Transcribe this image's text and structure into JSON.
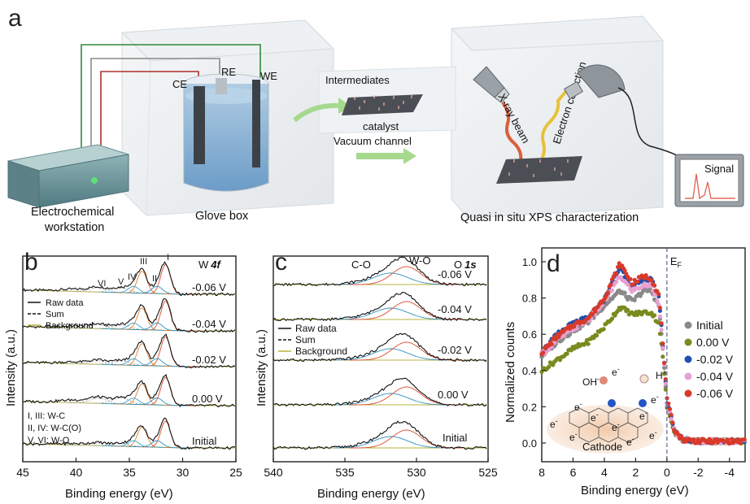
{
  "panel_a": {
    "letter": "a",
    "ce": "CE",
    "re": "RE",
    "we": "WE",
    "workstation_line1": "Electrochemical",
    "workstation_line2": "workstation",
    "glove_box": "Glove box",
    "intermediates": "Intermediates",
    "catalyst": "catalyst",
    "vacuum_channel": "Vacuum channel",
    "xray_beam": "X-ray beam",
    "electron_collection": "Electron collection",
    "signal": "Signal",
    "xps_title": "Quasi in situ XPS characterization"
  },
  "chart_data": [
    {
      "type": "line",
      "panel": "b",
      "title": "W 4f",
      "title_element": "W",
      "title_orbital": "4f",
      "xlabel": "Binding energy (eV)",
      "ylabel": "Intensity (a.u.)",
      "xlim": [
        45,
        25
      ],
      "xticks": [
        "45",
        "40",
        "35",
        "30",
        "25"
      ],
      "peak_labels": [
        "VI",
        "V",
        "IV",
        "III",
        "II",
        "I"
      ],
      "legend": [
        "Raw data",
        "Sum",
        "Background"
      ],
      "assignments": [
        "I, III: W-C",
        "II, IV: W-C(O)",
        "V, VI: W-O"
      ],
      "series": [
        {
          "name": "-0.06 V"
        },
        {
          "name": "-0.04 V"
        },
        {
          "name": "-0.02 V"
        },
        {
          "name": "0.00 V"
        },
        {
          "name": "Initial"
        }
      ]
    },
    {
      "type": "line",
      "panel": "c",
      "title": "O 1s",
      "title_element": "O",
      "title_orbital": "1s",
      "xlabel": "Binding energy (eV)",
      "ylabel": "Intensity (a.u.)",
      "xlim": [
        540,
        525
      ],
      "xticks": [
        "540",
        "535",
        "530",
        "525"
      ],
      "peak_labels": [
        "C-O",
        "W-O"
      ],
      "legend": [
        "Raw data",
        "Sum",
        "Background"
      ],
      "series": [
        {
          "name": "-0.06 V"
        },
        {
          "name": "-0.04 V"
        },
        {
          "name": "-0.02 V"
        },
        {
          "name": "0.00 V"
        },
        {
          "name": "Initial"
        }
      ]
    },
    {
      "type": "scatter",
      "panel": "d",
      "xlabel": "Binding energy (eV)",
      "ylabel": "Normalized counts",
      "xlim": [
        8,
        -5
      ],
      "ylim": [
        0,
        1.05
      ],
      "xticks": [
        "8",
        "6",
        "4",
        "2",
        "0",
        "-2",
        "-4"
      ],
      "yticks": [
        "0.0",
        "0.2",
        "0.4",
        "0.6",
        "0.8",
        "1.0"
      ],
      "fermi_label": "E",
      "fermi_sub": "F",
      "series": [
        {
          "name": "Initial",
          "color": "#8a8a8a",
          "points": [
            [
              8,
              0.48
            ],
            [
              7,
              0.56
            ],
            [
              6,
              0.62
            ],
            [
              5,
              0.67
            ],
            [
              4,
              0.76
            ],
            [
              3,
              0.84
            ],
            [
              2.2,
              0.78
            ],
            [
              1.5,
              0.84
            ],
            [
              1,
              0.84
            ],
            [
              0.5,
              0.75
            ],
            [
              0.2,
              0.45
            ],
            [
              0,
              0.22
            ],
            [
              -0.5,
              0.06
            ],
            [
              -1,
              0.02
            ],
            [
              -2,
              0.01
            ],
            [
              -3,
              0.01
            ],
            [
              -4,
              0.01
            ],
            [
              -5,
              0.01
            ]
          ]
        },
        {
          "name": "0.00 V",
          "color": "#7a8a1e",
          "points": [
            [
              8,
              0.4
            ],
            [
              7,
              0.46
            ],
            [
              6,
              0.52
            ],
            [
              5,
              0.56
            ],
            [
              4,
              0.64
            ],
            [
              3,
              0.75
            ],
            [
              2.2,
              0.71
            ],
            [
              1.5,
              0.72
            ],
            [
              1,
              0.72
            ],
            [
              0.5,
              0.66
            ],
            [
              0.2,
              0.42
            ],
            [
              0,
              0.2
            ],
            [
              -0.5,
              0.06
            ],
            [
              -1,
              0.02
            ],
            [
              -2,
              0.01
            ],
            [
              -3,
              0.01
            ],
            [
              -4,
              0.01
            ],
            [
              -5,
              0.01
            ]
          ]
        },
        {
          "name": "-0.02 V",
          "color": "#1f4fb0",
          "points": [
            [
              8,
              0.5
            ],
            [
              7,
              0.6
            ],
            [
              6,
              0.66
            ],
            [
              5,
              0.69
            ],
            [
              4,
              0.79
            ],
            [
              3,
              0.97
            ],
            [
              2.2,
              0.86
            ],
            [
              1.5,
              0.9
            ],
            [
              1,
              0.9
            ],
            [
              0.5,
              0.8
            ],
            [
              0.2,
              0.48
            ],
            [
              0,
              0.23
            ],
            [
              -0.5,
              0.07
            ],
            [
              -1,
              0.02
            ],
            [
              -2,
              0.01
            ],
            [
              -3,
              0.01
            ],
            [
              -4,
              0.01
            ],
            [
              -5,
              0.01
            ]
          ]
        },
        {
          "name": "-0.04 V",
          "color": "#e8a0d2",
          "points": [
            [
              8,
              0.49
            ],
            [
              7,
              0.57
            ],
            [
              6,
              0.63
            ],
            [
              5,
              0.68
            ],
            [
              4,
              0.78
            ],
            [
              3,
              0.92
            ],
            [
              2.2,
              0.84
            ],
            [
              1.5,
              0.87
            ],
            [
              1,
              0.87
            ],
            [
              0.5,
              0.77
            ],
            [
              0.2,
              0.46
            ],
            [
              0,
              0.22
            ],
            [
              -0.5,
              0.06
            ],
            [
              -1,
              0.02
            ],
            [
              -2,
              0.01
            ],
            [
              -3,
              0.01
            ],
            [
              -4,
              0.01
            ],
            [
              -5,
              0.01
            ]
          ]
        },
        {
          "name": "-0.06 V",
          "color": "#d83a2a",
          "points": [
            [
              8,
              0.5
            ],
            [
              7,
              0.59
            ],
            [
              6,
              0.65
            ],
            [
              5,
              0.69
            ],
            [
              4,
              0.8
            ],
            [
              3,
              0.99
            ],
            [
              2.2,
              0.88
            ],
            [
              1.5,
              0.92
            ],
            [
              1,
              0.91
            ],
            [
              0.5,
              0.81
            ],
            [
              0.2,
              0.49
            ],
            [
              0,
              0.24
            ],
            [
              -0.5,
              0.07
            ],
            [
              -1,
              0.02
            ],
            [
              -2,
              0.01
            ],
            [
              -3,
              0.01
            ],
            [
              -4,
              0.01
            ],
            [
              -5,
              0.01
            ]
          ]
        }
      ],
      "inset": {
        "oh": "OH",
        "oh_sup": "-",
        "e_left": "e",
        "e_left_sup": "-",
        "h": "H",
        "h_sup": "+",
        "e_right": "e",
        "e_right_sup": "-",
        "electron_label": "e",
        "electron_sup": "-",
        "cathode": "Cathode"
      }
    }
  ]
}
